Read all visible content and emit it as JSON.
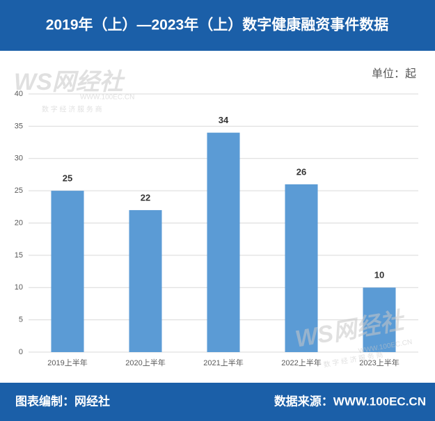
{
  "chart_data": {
    "type": "bar",
    "title": "2019年（上）—2023年（上）数字健康融资事件数据",
    "unit": "单位：起",
    "categories": [
      "2019上半年",
      "2020上半年",
      "2021上半年",
      "2022上半年",
      "2023上半年"
    ],
    "values": [
      25,
      22,
      34,
      26,
      10
    ],
    "color": "#5b9bd5",
    "ylim": [
      0,
      40
    ],
    "yticks": [
      0,
      5,
      10,
      15,
      20,
      25,
      30,
      35,
      40
    ],
    "grid": true,
    "watermark": {
      "logo": "WS网经社",
      "url": "WWW.100EC.CN",
      "tagline": "数 字 经 济 服 务 商"
    }
  },
  "footer": {
    "left": "图表编制：网经社",
    "right": "数据来源：WWW.100EC.CN"
  }
}
